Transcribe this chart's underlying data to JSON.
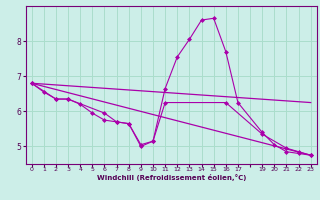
{
  "xlabel": "Windchill (Refroidissement éolien,°C)",
  "bg_color": "#cceee8",
  "line_color": "#aa00aa",
  "grid_color": "#aaddcc",
  "xlim": [
    -0.5,
    23.5
  ],
  "ylim": [
    4.5,
    9.0
  ],
  "yticks": [
    5,
    6,
    7,
    8
  ],
  "xtick_labels": [
    "0",
    "1",
    "2",
    "3",
    "4",
    "5",
    "6",
    "7",
    "8",
    "9",
    "10",
    "11",
    "12",
    "13",
    "14",
    "15",
    "16",
    "17",
    "",
    "19",
    "20",
    "21",
    "22",
    "23"
  ],
  "xtick_pos": [
    0,
    1,
    2,
    3,
    4,
    5,
    6,
    7,
    8,
    9,
    10,
    11,
    12,
    13,
    14,
    15,
    16,
    17,
    18,
    19,
    20,
    21,
    22,
    23
  ],
  "series": [
    {
      "x": [
        0,
        1,
        2,
        3,
        4,
        5,
        6,
        7,
        8,
        9,
        10,
        11,
        12,
        13,
        14,
        15,
        16,
        17,
        19,
        20,
        21,
        22,
        23
      ],
      "y": [
        6.8,
        6.55,
        6.35,
        6.35,
        6.2,
        5.95,
        5.75,
        5.7,
        5.65,
        5.0,
        5.15,
        6.65,
        7.55,
        8.05,
        8.6,
        8.65,
        7.7,
        6.25,
        5.4,
        5.05,
        4.85,
        4.8,
        4.75
      ],
      "marker": true
    },
    {
      "x": [
        0,
        2,
        3,
        6,
        7,
        8,
        9,
        10,
        11,
        16,
        19,
        21,
        22,
        23
      ],
      "y": [
        6.8,
        6.35,
        6.35,
        5.95,
        5.7,
        5.65,
        5.05,
        5.15,
        6.25,
        6.25,
        5.35,
        4.95,
        4.85,
        4.75
      ],
      "marker": true
    },
    {
      "x": [
        0,
        23
      ],
      "y": [
        6.8,
        6.25
      ],
      "marker": false
    },
    {
      "x": [
        0,
        23
      ],
      "y": [
        6.8,
        4.75
      ],
      "marker": false
    }
  ]
}
